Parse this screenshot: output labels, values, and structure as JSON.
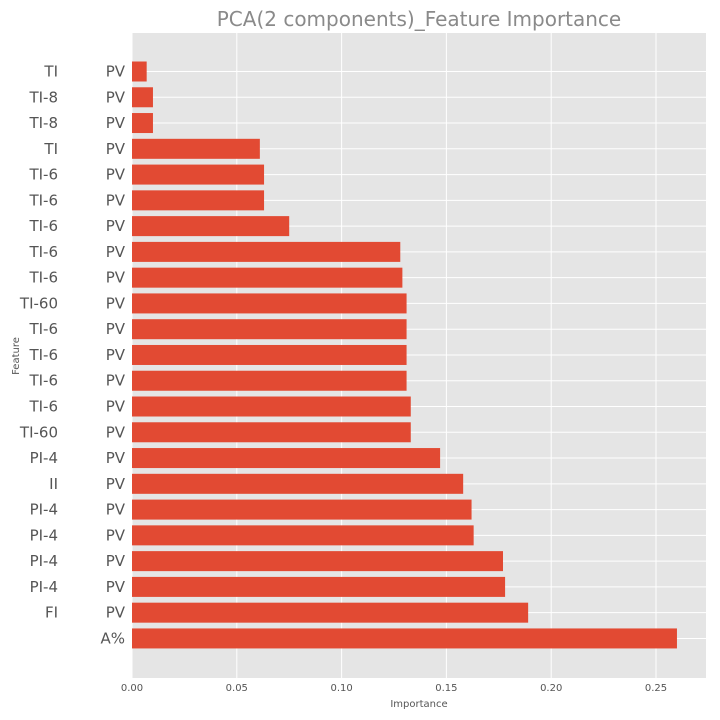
{
  "chart_data": {
    "type": "bar",
    "orientation": "horizontal",
    "title": "PCA(2 components)_Feature Importance",
    "xlabel": "Importance",
    "ylabel": "Feature",
    "xlim": [
      0.0,
      0.273
    ],
    "xticks": [
      "0.00",
      "0.05",
      "0.10",
      "0.15",
      "0.20",
      "0.25"
    ],
    "grid": true,
    "bar_color": "#e24a33",
    "background_color": "#e5e5e5",
    "categories": [
      {
        "left": "TI",
        "right": "PV"
      },
      {
        "left": "TI-8",
        "right": "PV"
      },
      {
        "left": "TI-8",
        "right": "PV"
      },
      {
        "left": "TI",
        "right": "PV"
      },
      {
        "left": "TI-6",
        "right": "PV"
      },
      {
        "left": "TI-6",
        "right": "PV"
      },
      {
        "left": "TI-6",
        "right": "PV"
      },
      {
        "left": "TI-6",
        "right": "PV"
      },
      {
        "left": "TI-6",
        "right": "PV"
      },
      {
        "left": "TI-60",
        "right": "PV"
      },
      {
        "left": "TI-6",
        "right": "PV"
      },
      {
        "left": "TI-6",
        "right": "PV"
      },
      {
        "left": "TI-6",
        "right": "PV"
      },
      {
        "left": "TI-6",
        "right": "PV"
      },
      {
        "left": "TI-60",
        "right": "PV"
      },
      {
        "left": "PI-4",
        "right": "PV"
      },
      {
        "left": "II",
        "right": "PV"
      },
      {
        "left": "PI-4",
        "right": "PV"
      },
      {
        "left": "PI-4",
        "right": "PV"
      },
      {
        "left": "PI-4",
        "right": "PV"
      },
      {
        "left": "PI-4",
        "right": "PV"
      },
      {
        "left": "FI",
        "right": "PV"
      },
      {
        "left": "",
        "right": "A%"
      }
    ],
    "values": [
      0.007,
      0.01,
      0.01,
      0.061,
      0.063,
      0.063,
      0.075,
      0.128,
      0.129,
      0.131,
      0.131,
      0.131,
      0.131,
      0.133,
      0.133,
      0.147,
      0.158,
      0.162,
      0.163,
      0.177,
      0.178,
      0.189,
      0.26
    ]
  }
}
